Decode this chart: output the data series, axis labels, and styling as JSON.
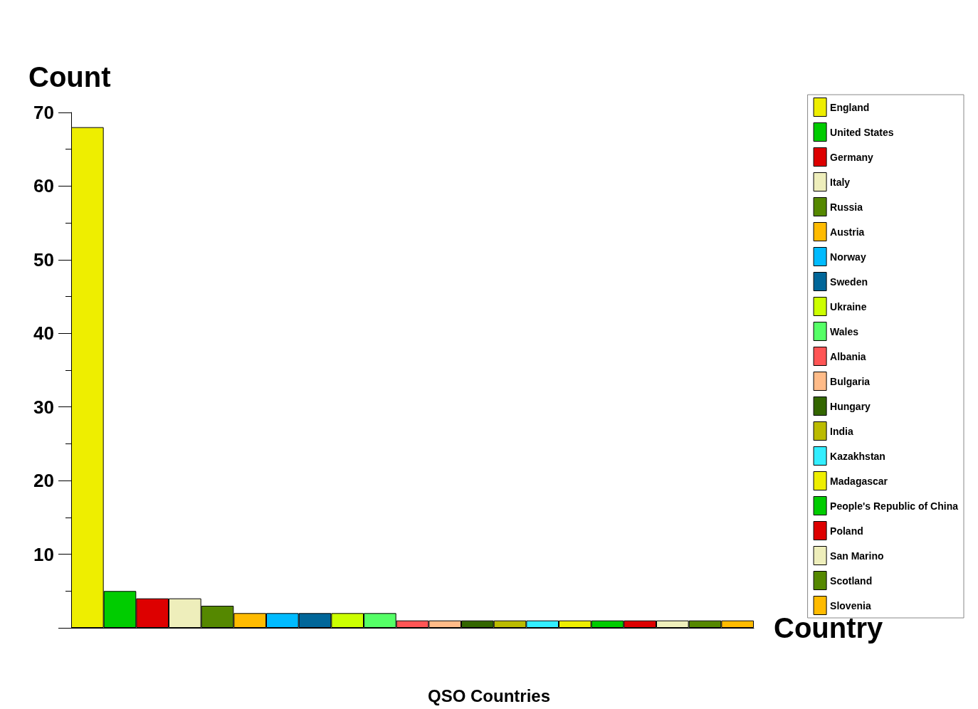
{
  "chart_data": {
    "type": "bar",
    "title": "QSO Countries",
    "xlabel": "Country",
    "ylabel": "Count",
    "categories": [
      null,
      null,
      null,
      null,
      null,
      null,
      null,
      null,
      null,
      null,
      null,
      null,
      null,
      null,
      null,
      null,
      null,
      null,
      null,
      null,
      null
    ],
    "series": [
      {
        "name": "England",
        "color": "#eeee00",
        "values": [
          68,
          null,
          null,
          null,
          null,
          null,
          null,
          null,
          null,
          null,
          null,
          null,
          null,
          null,
          null,
          null,
          null,
          null,
          null,
          null,
          null
        ]
      },
      {
        "name": "United States",
        "color": "#00cc00",
        "values": [
          null,
          5,
          null,
          null,
          null,
          null,
          null,
          null,
          null,
          null,
          null,
          null,
          null,
          null,
          null,
          null,
          null,
          null,
          null,
          null,
          null
        ]
      },
      {
        "name": "Germany",
        "color": "#dd0000",
        "values": [
          null,
          null,
          4,
          null,
          null,
          null,
          null,
          null,
          null,
          null,
          null,
          null,
          null,
          null,
          null,
          null,
          null,
          null,
          null,
          null,
          null
        ]
      },
      {
        "name": "Italy",
        "color": "#eeeebb",
        "values": [
          null,
          null,
          null,
          4,
          null,
          null,
          null,
          null,
          null,
          null,
          null,
          null,
          null,
          null,
          null,
          null,
          null,
          null,
          null,
          null,
          null
        ]
      },
      {
        "name": "Russia",
        "color": "#558800",
        "values": [
          null,
          null,
          null,
          null,
          3,
          null,
          null,
          null,
          null,
          null,
          null,
          null,
          null,
          null,
          null,
          null,
          null,
          null,
          null,
          null,
          null
        ]
      },
      {
        "name": "Austria",
        "color": "#ffbb00",
        "values": [
          null,
          null,
          null,
          null,
          null,
          2,
          null,
          null,
          null,
          null,
          null,
          null,
          null,
          null,
          null,
          null,
          null,
          null,
          null,
          null,
          null
        ]
      },
      {
        "name": "Norway",
        "color": "#00bbff",
        "values": [
          null,
          null,
          null,
          null,
          null,
          null,
          2,
          null,
          null,
          null,
          null,
          null,
          null,
          null,
          null,
          null,
          null,
          null,
          null,
          null,
          null
        ]
      },
      {
        "name": "Sweden",
        "color": "#006699",
        "values": [
          null,
          null,
          null,
          null,
          null,
          null,
          null,
          2,
          null,
          null,
          null,
          null,
          null,
          null,
          null,
          null,
          null,
          null,
          null,
          null,
          null
        ]
      },
      {
        "name": "Ukraine",
        "color": "#ccff00",
        "values": [
          null,
          null,
          null,
          null,
          null,
          null,
          null,
          null,
          2,
          null,
          null,
          null,
          null,
          null,
          null,
          null,
          null,
          null,
          null,
          null,
          null
        ]
      },
      {
        "name": "Wales",
        "color": "#55ff66",
        "values": [
          null,
          null,
          null,
          null,
          null,
          null,
          null,
          null,
          null,
          2,
          null,
          null,
          null,
          null,
          null,
          null,
          null,
          null,
          null,
          null,
          null
        ]
      },
      {
        "name": "Albania",
        "color": "#ff5555",
        "values": [
          null,
          null,
          null,
          null,
          null,
          null,
          null,
          null,
          null,
          null,
          1,
          null,
          null,
          null,
          null,
          null,
          null,
          null,
          null,
          null,
          null
        ]
      },
      {
        "name": "Bulgaria",
        "color": "#ffbb88",
        "values": [
          null,
          null,
          null,
          null,
          null,
          null,
          null,
          null,
          null,
          null,
          null,
          1,
          null,
          null,
          null,
          null,
          null,
          null,
          null,
          null,
          null
        ]
      },
      {
        "name": "Hungary",
        "color": "#336600",
        "values": [
          null,
          null,
          null,
          null,
          null,
          null,
          null,
          null,
          null,
          null,
          null,
          null,
          1,
          null,
          null,
          null,
          null,
          null,
          null,
          null,
          null
        ]
      },
      {
        "name": "India",
        "color": "#bbbb00",
        "values": [
          null,
          null,
          null,
          null,
          null,
          null,
          null,
          null,
          null,
          null,
          null,
          null,
          null,
          1,
          null,
          null,
          null,
          null,
          null,
          null,
          null
        ]
      },
      {
        "name": "Kazakhstan",
        "color": "#33eeff",
        "values": [
          null,
          null,
          null,
          null,
          null,
          null,
          null,
          null,
          null,
          null,
          null,
          null,
          null,
          null,
          1,
          null,
          null,
          null,
          null,
          null,
          null
        ]
      },
      {
        "name": "Madagascar",
        "color": "#eeee00",
        "values": [
          null,
          null,
          null,
          null,
          null,
          null,
          null,
          null,
          null,
          null,
          null,
          null,
          null,
          null,
          null,
          1,
          null,
          null,
          null,
          null,
          null
        ]
      },
      {
        "name": "People's Republic of China",
        "color": "#00cc00",
        "values": [
          null,
          null,
          null,
          null,
          null,
          null,
          null,
          null,
          null,
          null,
          null,
          null,
          null,
          null,
          null,
          null,
          1,
          null,
          null,
          null,
          null
        ]
      },
      {
        "name": "Poland",
        "color": "#dd0000",
        "values": [
          null,
          null,
          null,
          null,
          null,
          null,
          null,
          null,
          null,
          null,
          null,
          null,
          null,
          null,
          null,
          null,
          null,
          1,
          null,
          null,
          null
        ]
      },
      {
        "name": "San Marino",
        "color": "#eeeebb",
        "values": [
          null,
          null,
          null,
          null,
          null,
          null,
          null,
          null,
          null,
          null,
          null,
          null,
          null,
          null,
          null,
          null,
          null,
          null,
          1,
          null,
          null
        ]
      },
      {
        "name": "Scotland",
        "color": "#558800",
        "values": [
          null,
          null,
          null,
          null,
          null,
          null,
          null,
          null,
          null,
          null,
          null,
          null,
          null,
          null,
          null,
          null,
          null,
          null,
          null,
          1,
          null
        ]
      },
      {
        "name": "Slovenia",
        "color": "#ffbb00",
        "values": [
          null,
          null,
          null,
          null,
          null,
          null,
          null,
          null,
          null,
          null,
          null,
          null,
          null,
          null,
          null,
          null,
          null,
          null,
          null,
          null,
          1
        ]
      }
    ],
    "ylim": [
      0,
      70
    ],
    "yticks": [
      {
        "value": 0,
        "label": null
      },
      10,
      20,
      30,
      40,
      50,
      60,
      70
    ],
    "tick_labels": "y",
    "legend": "right",
    "grid": false
  }
}
